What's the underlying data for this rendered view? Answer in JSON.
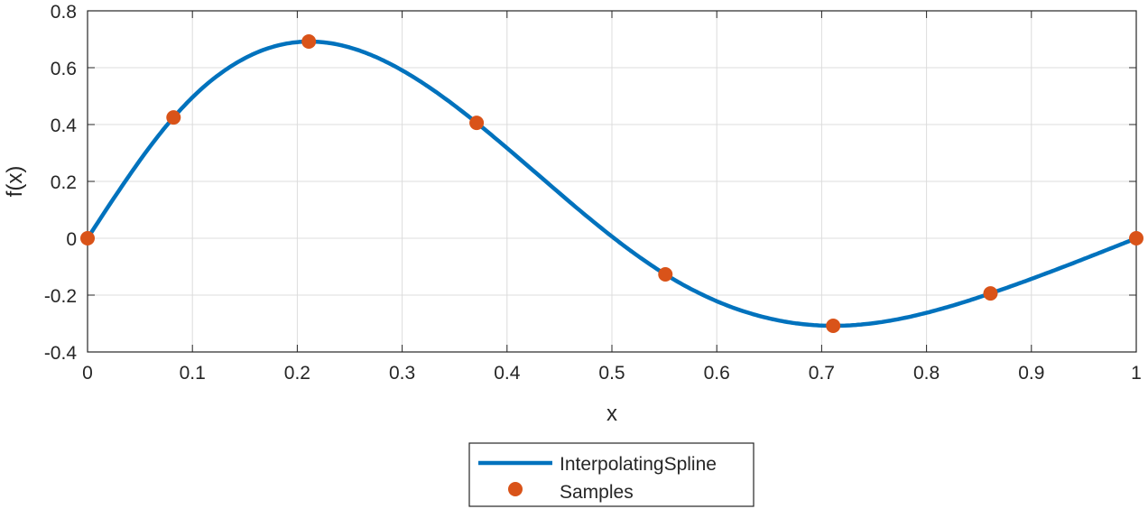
{
  "chart_data": {
    "type": "line",
    "title": "",
    "xlabel": "x",
    "ylabel": "f(x)",
    "xlim": [
      0,
      1
    ],
    "ylim": [
      -0.4,
      0.8
    ],
    "xticks": [
      0,
      0.1,
      0.2,
      0.3,
      0.4,
      0.5,
      0.6,
      0.7,
      0.8,
      0.9,
      1
    ],
    "xtick_labels": [
      "0",
      "0.1",
      "0.2",
      "0.3",
      "0.4",
      "0.5",
      "0.6",
      "0.7",
      "0.8",
      "0.9",
      "1"
    ],
    "yticks": [
      -0.4,
      -0.2,
      0,
      0.2,
      0.4,
      0.6,
      0.8
    ],
    "ytick_labels": [
      "-0.4",
      "-0.2",
      "0",
      "0.2",
      "0.4",
      "0.6",
      "0.8"
    ],
    "grid": true,
    "legend_position": "below",
    "series": [
      {
        "name": "InterpolatingSpline",
        "kind": "line",
        "method": "cubic spline through samples",
        "color": "#0072BD"
      },
      {
        "name": "Samples",
        "kind": "scatter",
        "color": "#D95319",
        "x": [
          0,
          0.082,
          0.211,
          0.371,
          0.551,
          0.711,
          0.861,
          1
        ],
        "y": [
          0,
          0.425,
          0.692,
          0.406,
          -0.127,
          -0.308,
          -0.194,
          0
        ]
      }
    ]
  }
}
